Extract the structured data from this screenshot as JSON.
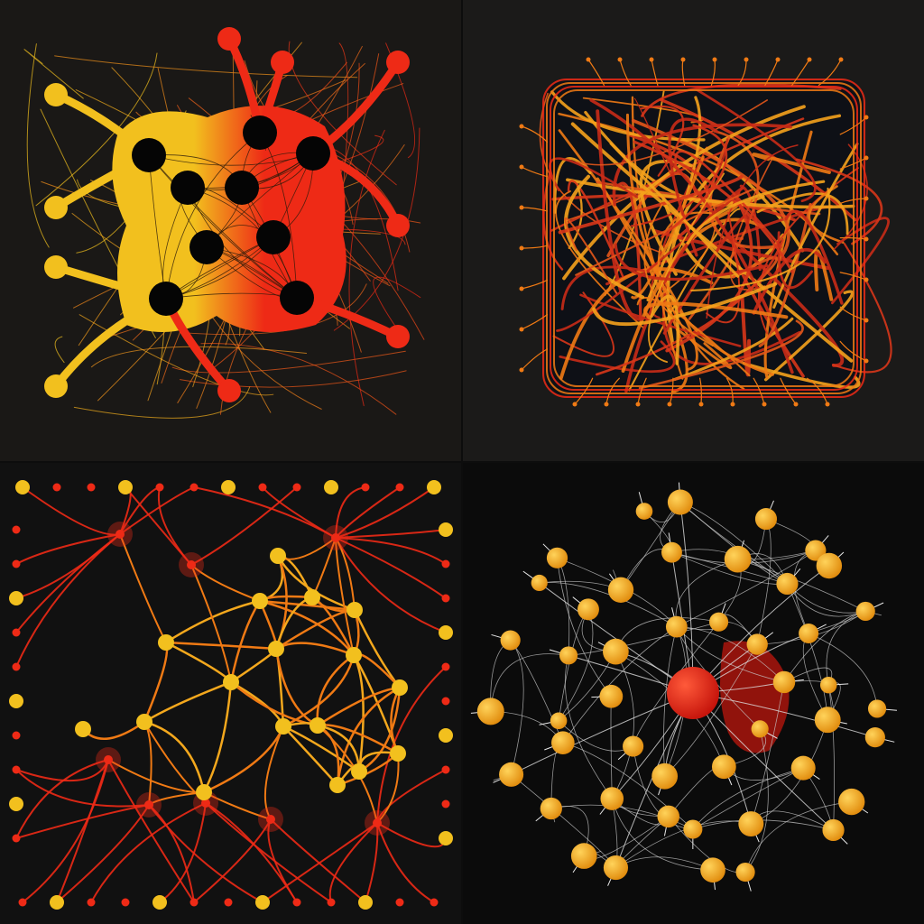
{
  "panels": [
    {
      "id": "top-left",
      "subject": "network-nodes-yellow-red-black"
    },
    {
      "id": "top-right",
      "subject": "tangled-orange-lines-square"
    },
    {
      "id": "bottom-left",
      "subject": "red-yellow-node-lattice"
    },
    {
      "id": "bottom-right",
      "subject": "web-with-yellow-spheres-red-core"
    }
  ],
  "colors": {
    "yellow": "#f2c01e",
    "orange": "#f07a14",
    "red": "#ee2a16",
    "black": "#050505",
    "white_line": "#c8c8c8",
    "bg_dark": "#151515"
  }
}
